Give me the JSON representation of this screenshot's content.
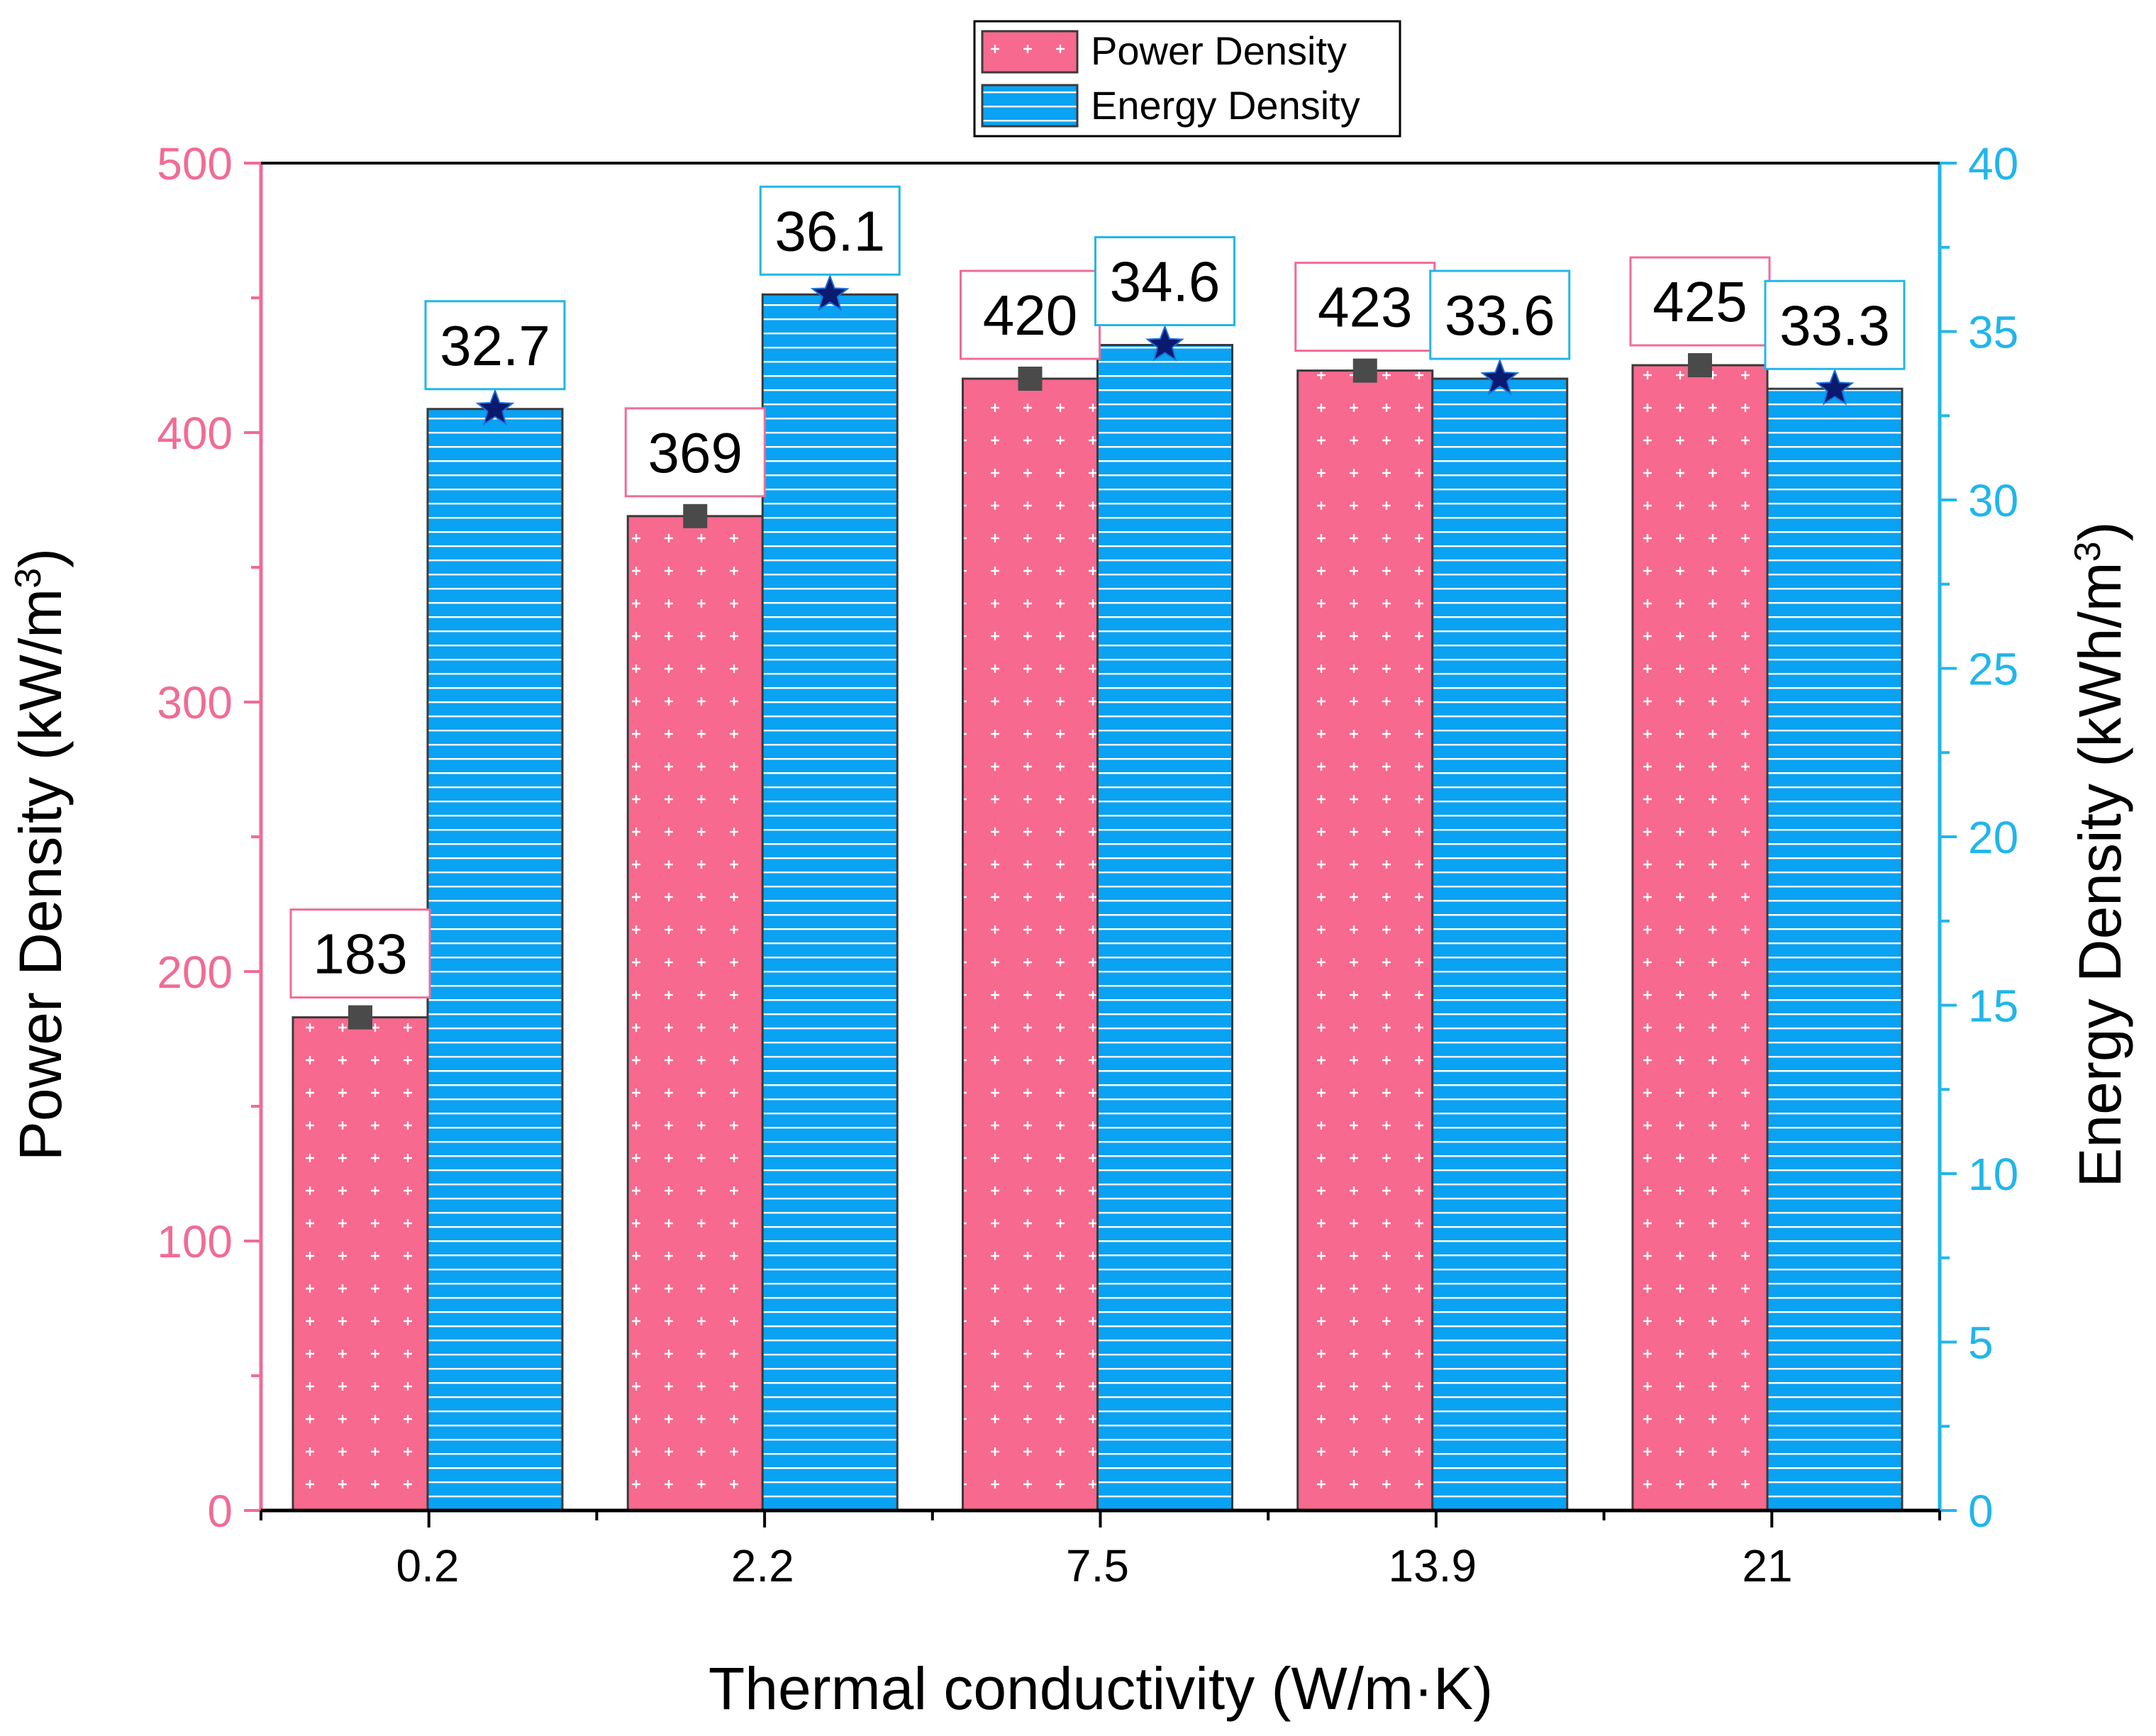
{
  "chart_data": {
    "type": "bar",
    "title": "",
    "xlabel": "Thermal conductivity (W/m·K)",
    "ylabel_left": "Power Density (kW/m",
    "ylabel_left_sup": "3",
    "ylabel_left_close": ")",
    "ylabel_right": "Energy Density (kWh/m",
    "ylabel_right_sup": "3",
    "ylabel_right_close": ")",
    "categories": [
      "0.2",
      "2.2",
      "7.5",
      "13.9",
      "21"
    ],
    "ylim_left": [
      0,
      500
    ],
    "ylim_right": [
      0,
      40
    ],
    "yticks_left": [
      "0",
      "100",
      "200",
      "300",
      "400",
      "500"
    ],
    "yticks_right": [
      "0",
      "5",
      "10",
      "15",
      "20",
      "25",
      "30",
      "35",
      "40"
    ],
    "series": [
      {
        "name": "Power Density",
        "axis": "left",
        "values": [
          183,
          369,
          420,
          423,
          425
        ],
        "labels": [
          "183",
          "369",
          "420",
          "423",
          "425"
        ],
        "color": "#f7698e",
        "pattern": "plus",
        "marker": "square"
      },
      {
        "name": "Energy Density",
        "axis": "right",
        "values": [
          32.7,
          36.1,
          34.6,
          33.6,
          33.3
        ],
        "labels": [
          "32.7",
          "36.1",
          "34.6",
          "33.6",
          "33.3"
        ],
        "color": "#0aa2f2",
        "pattern": "horizontal-lines",
        "marker": "star"
      }
    ],
    "legend": {
      "position": "top-center"
    },
    "colors": {
      "left_axis": "#f06c95",
      "right_axis": "#21b6ea",
      "bar_edge": "#3a3a3a",
      "marker_square": "#4a4a4a",
      "marker_star": "#0a1a6e"
    }
  }
}
